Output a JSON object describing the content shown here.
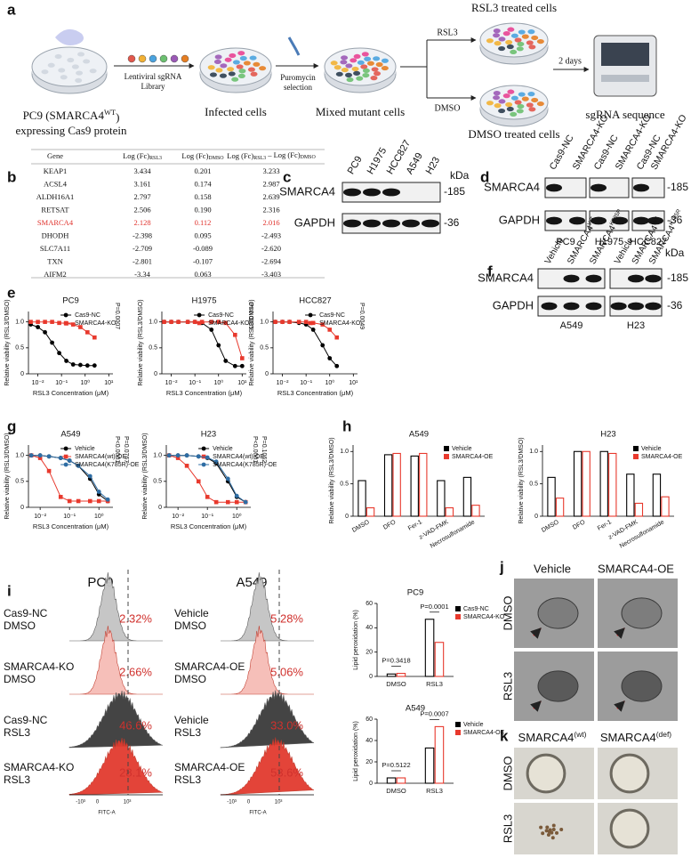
{
  "panel_a": {
    "letter": "a",
    "start_label": {
      "text": "PC9 (SMARCA4",
      "sup": "WT",
      "tail": ")"
    },
    "start_label_line2": "expressing Cas9 protein",
    "library": [
      "Lentiviral sgRNA",
      "Library"
    ],
    "infected": "Infected cells",
    "puromycin": [
      "Puromycin",
      "selection"
    ],
    "mixed": "Mixed mutant cells",
    "branch_top": "RSL3",
    "branch_bottom": "DMSO",
    "top_dish": "RSL3 treated cells",
    "bottom_dish": "DMSO treated cells",
    "duration": "2 days",
    "sequencer": "sgRNA sequence"
  },
  "panel_b": {
    "letter": "b",
    "highlight_row": 4,
    "highlight_color": "#e0312b",
    "headers": [
      "Gene",
      [
        "Log (Fc)",
        "RSL3"
      ],
      [
        "Log (Fc)",
        "DMSO"
      ],
      [
        "Log (Fc)",
        "RSL3",
        " – Log (Fc)",
        "DMSO"
      ]
    ],
    "rows": [
      [
        "KEAP1",
        "3.434",
        "0.201",
        "3.233"
      ],
      [
        "ACSL4",
        "3.161",
        "0.174",
        "2.987"
      ],
      [
        "ALDH16A1",
        "2.797",
        "0.158",
        "2.639"
      ],
      [
        "RETSAT",
        "2.506",
        "0.190",
        "2.316"
      ],
      [
        "SMARCA4",
        "2.128",
        "0.112",
        "2.016"
      ],
      [
        "DHODH",
        "-2.398",
        "0.095",
        "-2.493"
      ],
      [
        "SLC7A11",
        "-2.709",
        "-0.089",
        "-2.620"
      ],
      [
        "TXN",
        "-2.801",
        "-0.107",
        "-2.694"
      ],
      [
        "AIFM2",
        "-3.34",
        "0.063",
        "-3.403"
      ]
    ]
  },
  "panel_c": {
    "letter": "c",
    "lanes": [
      "PC9",
      "H1975",
      "HCC827",
      "A549",
      "H23"
    ],
    "rows": [
      "SMARCA4",
      "GAPDH"
    ],
    "unit": "kDa",
    "markers": [
      "-185",
      "-36"
    ]
  },
  "panel_d": {
    "letter": "d",
    "groups": [
      {
        "cell": "PC9",
        "lanes": [
          "Cas9-NC",
          "SMARCA4-KO"
        ]
      },
      {
        "cell": "H1975",
        "lanes": [
          "Cas9-NC",
          "SMARCA4-KO"
        ]
      },
      {
        "cell": "HCC827",
        "lanes": [
          "Cas9-NC",
          "SMARCA4-KO"
        ]
      }
    ],
    "rows": [
      "SMARCA4",
      "GAPDH"
    ],
    "markers": [
      "-185",
      "-36"
    ]
  },
  "panel_e": {
    "letter": "e",
    "plots": [
      {
        "type": "line",
        "title": "PC9",
        "x": [
          0.005,
          0.01,
          0.02,
          0.04,
          0.08,
          0.16,
          0.31,
          0.63,
          1.25,
          2.5
        ],
        "series": [
          {
            "name": "Cas9-NC",
            "color": "#000000",
            "values": [
              0.95,
              0.9,
              0.8,
              0.6,
              0.4,
              0.25,
              0.18,
              0.17,
              0.16,
              0.16
            ]
          },
          {
            "name": "SMARCA4-KO",
            "color": "#e8392d",
            "values": [
              1,
              1,
              1,
              1,
              0.98,
              0.97,
              0.95,
              0.9,
              0.8,
              0.7
            ]
          }
        ],
        "xlim": [
          0.004,
          15
        ],
        "xticks": [
          {
            "value": 0.01,
            "label": "10⁻²"
          },
          {
            "value": 0.1,
            "label": "10⁻¹"
          },
          {
            "value": 1,
            "label": "10⁰"
          },
          {
            "value": 10,
            "label": "10¹"
          }
        ],
        "ylim": [
          0,
          1.2
        ],
        "yticks": [
          0,
          0.5,
          {
            "value": 1,
            "label": "1.0"
          }
        ],
        "ylabel": "Relative viability (RSL3/DMSO)",
        "xlabel": "RSL3 Concentration (μM)",
        "log_x": true,
        "p_values": [
          "P=0.0007"
        ]
      },
      {
        "type": "line",
        "title": "H1975",
        "x": [
          0.005,
          0.01,
          0.02,
          0.05,
          0.1,
          0.2,
          0.5,
          1,
          2,
          5,
          10
        ],
        "series": [
          {
            "name": "Cas9-NC",
            "color": "#000000",
            "values": [
              1,
              1,
              1,
              1,
              1,
              0.98,
              0.85,
              0.55,
              0.25,
              0.15,
              0.15
            ]
          },
          {
            "name": "SMARCA4-KO",
            "color": "#e8392d",
            "values": [
              1,
              1,
              1,
              1,
              1,
              1,
              1,
              1,
              0.98,
              0.75,
              0.3
            ]
          }
        ],
        "xlim": [
          0.004,
          15
        ],
        "xticks": [
          {
            "value": 0.01,
            "label": "10⁻²"
          },
          {
            "value": 0.1,
            "label": "10⁻¹"
          },
          {
            "value": 1,
            "label": "10⁰"
          },
          {
            "value": 10,
            "label": "10¹"
          }
        ],
        "ylim": [
          0,
          1.2
        ],
        "yticks": [
          0,
          0.5,
          {
            "value": 1,
            "label": "1.0"
          }
        ],
        "ylabel": "Relative viability (RSL3/DMSO)",
        "xlabel": "RSL3 Concentration (μM)",
        "log_x": true,
        "p_values": [
          "P=0.0035"
        ]
      },
      {
        "type": "line",
        "title": "HCC827",
        "x": [
          0.005,
          0.01,
          0.02,
          0.05,
          0.1,
          0.2,
          0.5,
          1,
          2
        ],
        "series": [
          {
            "name": "Cas9-NC",
            "color": "#000000",
            "values": [
              1,
              1,
              1,
              0.98,
              0.95,
              0.85,
              0.55,
              0.3,
              0.15
            ]
          },
          {
            "name": "SMARCA4-KO",
            "color": "#e8392d",
            "values": [
              1,
              1,
              1,
              1,
              1,
              0.98,
              0.95,
              0.85,
              0.7
            ]
          }
        ],
        "xlim": [
          0.004,
          15
        ],
        "xticks": [
          {
            "value": 0.01,
            "label": "10⁻²"
          },
          {
            "value": 0.1,
            "label": "10⁻¹"
          },
          {
            "value": 1,
            "label": "10⁰"
          },
          {
            "value": 10,
            "label": "10¹"
          }
        ],
        "ylim": [
          0,
          1.2
        ],
        "yticks": [
          0,
          0.5,
          {
            "value": 1,
            "label": "1.0"
          }
        ],
        "ylabel": "Relative viability (RSL3/DMSO)",
        "xlabel": "RSL3 Concentration (μM)",
        "log_x": true,
        "p_values": [
          "P=0.0049"
        ]
      }
    ]
  },
  "panel_f": {
    "letter": "f",
    "groups": [
      {
        "cell": "A549",
        "lanes": [
          "Vehicle",
          {
            "text": "SMARCA4",
            "sup": "WT"
          },
          {
            "text": "SMARCA4",
            "sup": "K785R"
          }
        ]
      },
      {
        "cell": "H23",
        "lanes": [
          "Vehicle",
          {
            "text": "SMARCA4",
            "sup": "WT"
          },
          {
            "text": "SMARCA4",
            "sup": "K785R"
          }
        ]
      }
    ],
    "rows": [
      "SMARCA4",
      "GAPDH"
    ],
    "unit": "kDa",
    "markers": [
      "-185",
      "-36"
    ]
  },
  "panel_g": {
    "letter": "g",
    "plots": [
      {
        "type": "line",
        "title": "A549",
        "x": [
          0.005,
          0.01,
          0.02,
          0.05,
          0.1,
          0.2,
          0.5,
          1,
          2
        ],
        "series": [
          {
            "name": "Vehicle",
            "color": "#000000",
            "values": [
              1,
              1,
              0.98,
              0.95,
              0.9,
              0.8,
              0.55,
              0.25,
              0.12
            ]
          },
          {
            "name": "SMARCA4(wt)-OE",
            "color": "#e8392d",
            "values": [
              1,
              0.95,
              0.7,
              0.2,
              0.12,
              0.12,
              0.12,
              0.12,
              0.12
            ]
          },
          {
            "name": "SMARCA4(K785R)-OE",
            "color": "#2e6da4",
            "values": [
              1,
              1,
              0.98,
              0.95,
              0.9,
              0.8,
              0.6,
              0.3,
              0.15
            ]
          }
        ],
        "xlim": [
          0.004,
          3
        ],
        "xticks": [
          {
            "value": 0.01,
            "label": "10⁻²"
          },
          {
            "value": 0.1,
            "label": "10⁻¹"
          },
          {
            "value": 1,
            "label": "10⁰"
          }
        ],
        "ylim": [
          0,
          1.2
        ],
        "yticks": [
          0,
          0.5,
          {
            "value": 1,
            "label": "1.0"
          }
        ],
        "ylabel": "Relative viability (RSL3/DMSO)",
        "xlabel": "RSL3 Concentration (μM)",
        "log_x": true,
        "p_values": [
          "P<0.0001",
          "P=0.0767"
        ]
      },
      {
        "type": "line",
        "title": "H23",
        "x": [
          0.005,
          0.01,
          0.02,
          0.05,
          0.1,
          0.2,
          0.5,
          1,
          2
        ],
        "series": [
          {
            "name": "Vehicle",
            "color": "#000000",
            "values": [
              1,
              1,
              1,
              0.98,
              0.95,
              0.85,
              0.5,
              0.2,
              0.1
            ]
          },
          {
            "name": "SMARCA4(wt)-OE",
            "color": "#e8392d",
            "values": [
              1,
              0.95,
              0.8,
              0.5,
              0.2,
              0.1,
              0.1,
              0.1,
              0.1
            ]
          },
          {
            "name": "SMARCA4(K785R)-OE",
            "color": "#2e6da4",
            "values": [
              1,
              1,
              1,
              0.98,
              0.96,
              0.88,
              0.55,
              0.22,
              0.1
            ]
          }
        ],
        "xlim": [
          0.004,
          3
        ],
        "xticks": [
          {
            "value": 0.01,
            "label": "10⁻²"
          },
          {
            "value": 0.1,
            "label": "10⁻¹"
          },
          {
            "value": 1,
            "label": "10⁰"
          }
        ],
        "ylim": [
          0,
          1.2
        ],
        "yticks": [
          0,
          0.5,
          {
            "value": 1,
            "label": "1.0"
          }
        ],
        "ylabel": "Relative viability (RSL3/DMSO)",
        "xlabel": "RSL3 Concentration (μM)",
        "log_x": true,
        "p_values": [
          "P<0.0001",
          "P=0.1062"
        ]
      }
    ]
  },
  "panel_h": {
    "letter": "h",
    "plots": [
      {
        "type": "bar",
        "title": "A549",
        "categories": [
          "DMSO",
          "DFO",
          "Fer-1",
          "z-VAD-FMK",
          "Necrosulfonamide"
        ],
        "series": [
          {
            "name": "Vehicle",
            "color": "#000000",
            "values": [
              0.55,
              0.95,
              0.93,
              0.55,
              0.6
            ]
          },
          {
            "name": "SMARCA4-OE",
            "color": "#e8392d",
            "values": [
              0.13,
              0.97,
              0.97,
              0.13,
              0.17
            ]
          }
        ],
        "ylim": [
          0,
          1.1
        ],
        "yticks": [
          0,
          0.5,
          {
            "value": 1,
            "label": "1.0"
          }
        ],
        "ylabel": "Relative viability (RSL3/DMSO)",
        "legend": "upper right"
      },
      {
        "type": "bar",
        "title": "H23",
        "categories": [
          "DMSO",
          "DFO",
          "Fer-1",
          "z-VAD-FMK",
          "Necrosulfonamide"
        ],
        "series": [
          {
            "name": "Vehicle",
            "color": "#000000",
            "values": [
              0.6,
              1,
              1,
              0.65,
              0.65
            ]
          },
          {
            "name": "SMARCA4-OE",
            "color": "#e8392d",
            "values": [
              0.28,
              1,
              0.97,
              0.2,
              0.3
            ]
          }
        ],
        "ylim": [
          0,
          1.1
        ],
        "yticks": [
          0,
          0.5,
          {
            "value": 1,
            "label": "1.0"
          }
        ],
        "ylabel": "Relative viability (RSL3/DMSO)",
        "legend": "upper right"
      }
    ]
  },
  "panel_i": {
    "letter": "i",
    "flow": [
      {
        "title": "PC9",
        "rows": [
          {
            "label": [
              "Cas9-NC",
              "DMSO"
            ],
            "percent": "2.32%"
          },
          {
            "label": [
              "SMARCA4-KO",
              "DMSO"
            ],
            "percent": "2.66%"
          },
          {
            "label": [
              "Cas9-NC",
              "RSL3"
            ],
            "percent": "46.6%"
          },
          {
            "label": [
              "SMARCA4-KO",
              "RSL3"
            ],
            "percent": "28.1%"
          }
        ],
        "axis": [
          "-10³",
          "0",
          "10³"
        ],
        "axis_title": "FITC-A"
      },
      {
        "title": "A549",
        "rows": [
          {
            "label": [
              "Vehicle",
              "DMSO"
            ],
            "percent": "5.28%"
          },
          {
            "label": [
              "SMARCA4-OE",
              "DMSO"
            ],
            "percent": "5.06%"
          },
          {
            "label": [
              "Vehicle",
              "RSL3"
            ],
            "percent": "33.0%"
          },
          {
            "label": [
              "SMARCA4-OE",
              "RSL3"
            ],
            "percent": "53.6%"
          }
        ],
        "axis": [
          "-10³",
          "0",
          "10³"
        ],
        "axis_title": "FITC-A"
      }
    ],
    "plots": [
      {
        "type": "bar",
        "title": "PC9",
        "categories": [
          "DMSO",
          "RSL3"
        ],
        "series": [
          {
            "name": "Cas9-NC",
            "color": "#000000",
            "values": [
              2,
              47
            ]
          },
          {
            "name": "SMARCA4-KO",
            "color": "#e8392d",
            "values": [
              2.5,
              28
            ]
          }
        ],
        "ylim": [
          0,
          60
        ],
        "yticks": [
          0,
          20,
          40,
          60
        ],
        "ylabel": "Lipid peroxidation (%)",
        "p_values": [
          "P=0.3418",
          "P=0.0001"
        ],
        "legend": "right"
      },
      {
        "type": "bar",
        "title": "A549",
        "categories": [
          "DMSO",
          "RSL3"
        ],
        "series": [
          {
            "name": "Vehicle",
            "color": "#000000",
            "values": [
              5,
              33
            ]
          },
          {
            "name": "SMARCA4-OE",
            "color": "#e8392d",
            "values": [
              5,
              53
            ]
          }
        ],
        "ylim": [
          0,
          60
        ],
        "yticks": [
          0,
          20,
          40,
          60
        ],
        "ylabel": "Lipid peroxidation (%)",
        "p_values": [
          "P=0.5122",
          "P=0.0007"
        ],
        "legend": "right"
      }
    ]
  },
  "panel_j": {
    "letter": "j",
    "columns": [
      "Vehicle",
      "SMARCA4-OE"
    ],
    "rows": [
      "DMSO",
      "RSL3"
    ]
  },
  "panel_k": {
    "letter": "k",
    "columns": [
      {
        "text": "SMARCA4",
        "sup": "(wt)"
      },
      {
        "text": "SMARCA4",
        "sup": "(def)"
      }
    ],
    "rows": [
      "DMSO",
      "RSL3"
    ]
  }
}
